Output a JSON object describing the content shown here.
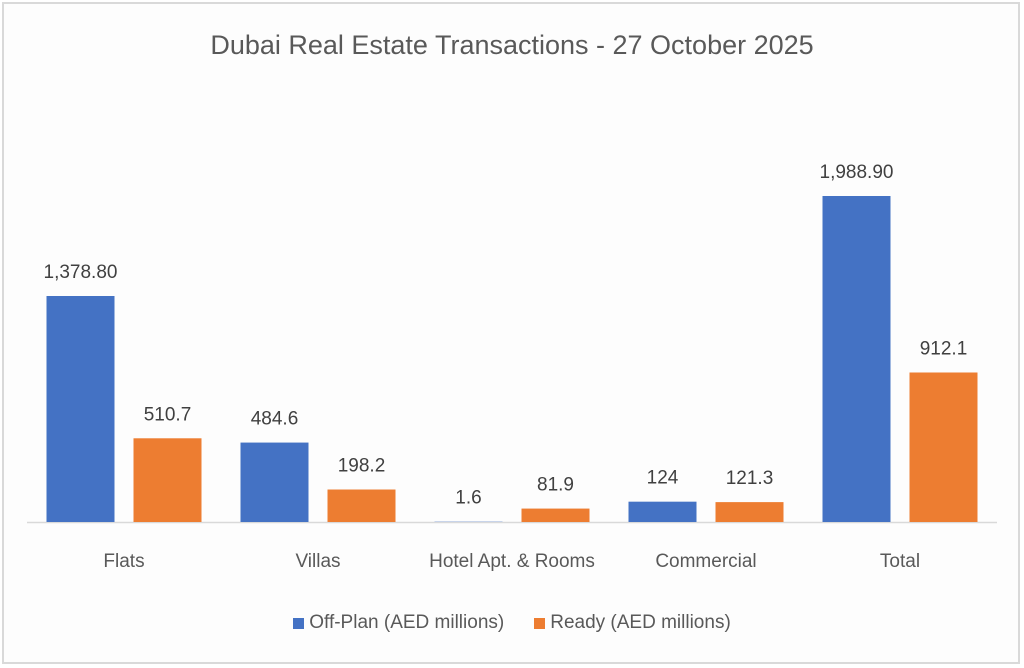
{
  "chart_data": {
    "type": "bar",
    "title": "Dubai Real Estate Transactions - 27 October 2025",
    "xlabel": "",
    "ylabel": "",
    "ylim": [
      0,
      2000
    ],
    "grid": false,
    "legend_position": "bottom",
    "categories": [
      "Flats",
      "Villas",
      "Hotel Apt. & Rooms",
      "Commercial",
      "Total"
    ],
    "series": [
      {
        "name": "Off-Plan (AED millions)",
        "color": "#4472c4",
        "values": [
          1378.8,
          484.6,
          1.6,
          124,
          1988.9
        ],
        "labels": [
          "1,378.80",
          "484.6",
          "1.6",
          "124",
          "1,988.90"
        ]
      },
      {
        "name": "Ready (AED millions)",
        "color": "#ed7d31",
        "values": [
          510.7,
          198.2,
          81.9,
          121.3,
          912.1
        ],
        "labels": [
          "510.7",
          "198.2",
          "81.9",
          "121.3",
          "912.1"
        ]
      }
    ]
  }
}
